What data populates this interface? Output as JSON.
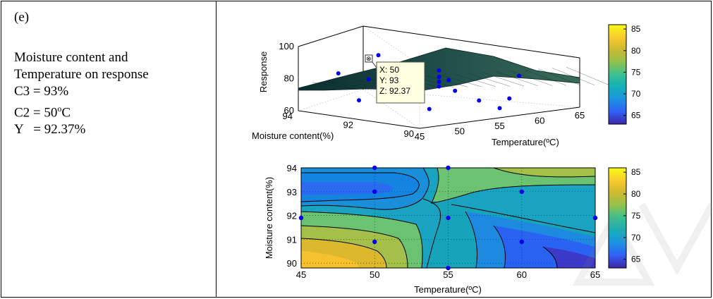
{
  "left_panel": {
    "label": "(e)",
    "lines": [
      "Moisture content and",
      "Temperature on response",
      "C3 = 93%",
      "C2 = 50",
      "Y   = 92.37%"
    ],
    "c2_sup": "o",
    "c2_unit": "C"
  },
  "colors": {
    "colormap": [
      "#3e26a8",
      "#2f62f6",
      "#1c92e2",
      "#13b2b8",
      "#3ac08f",
      "#8fc24f",
      "#cbba2f",
      "#f7c92f",
      "#f9fb15"
    ],
    "marker": "#0000ee"
  },
  "chart_data": [
    {
      "type": "surface",
      "zlabel": "Response",
      "xlabel": "Temperature(ºC)",
      "ylabel": "Moisture content(%)",
      "x_ticks": [
        45,
        50,
        55,
        60,
        65
      ],
      "y_ticks": [
        90,
        92,
        94
      ],
      "z_ticks": [
        60,
        80,
        100
      ],
      "xlim": [
        45,
        65
      ],
      "ylim": [
        90,
        94
      ],
      "zlim": [
        60,
        100
      ],
      "grid": true,
      "colorbar_ticks": [
        65,
        70,
        75,
        80,
        85
      ],
      "colorbar_range": [
        63,
        86
      ],
      "datatip": {
        "x": "X: 50",
        "y": "Y: 93",
        "z": "Z: 92.37"
      }
    },
    {
      "type": "contour",
      "xlabel": "Temperature(ºC)",
      "ylabel": "Moisture content(%)",
      "x_ticks": [
        45,
        50,
        55,
        60,
        65
      ],
      "y_ticks": [
        90,
        91,
        92,
        93,
        94
      ],
      "xlim": [
        45,
        65
      ],
      "ylim": [
        89.8,
        94
      ],
      "colorbar_ticks": [
        65,
        70,
        75,
        80,
        85
      ],
      "colorbar_range": [
        63,
        86
      ],
      "design_points": [
        {
          "x": 45,
          "y": 91.9
        },
        {
          "x": 50,
          "y": 94
        },
        {
          "x": 50,
          "y": 93
        },
        {
          "x": 50,
          "y": 90.9
        },
        {
          "x": 55,
          "y": 94
        },
        {
          "x": 55,
          "y": 91.9
        },
        {
          "x": 55,
          "y": 89.8
        },
        {
          "x": 60,
          "y": 93
        },
        {
          "x": 60,
          "y": 90.9
        },
        {
          "x": 65,
          "y": 91.9
        }
      ]
    }
  ]
}
